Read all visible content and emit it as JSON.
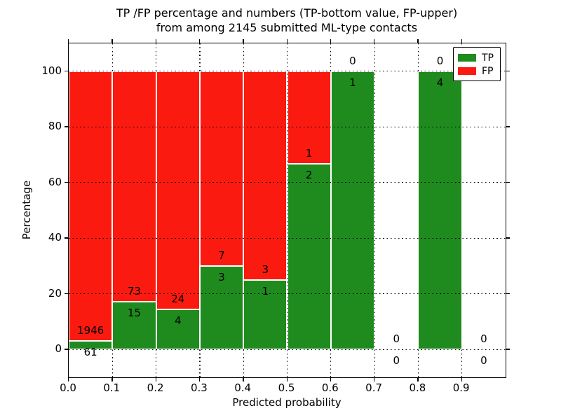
{
  "figure": {
    "title_line1": "TP /FP percentage and numbers (TP-bottom value, FP-upper)",
    "title_line2": "from among 2145 submitted ML-type contacts"
  },
  "axes": {
    "xlabel": "Predicted probability",
    "ylabel": "Percentage",
    "x_tick_labels": [
      "0.0",
      "0.1",
      "0.2",
      "0.3",
      "0.4",
      "0.5",
      "0.6",
      "0.7",
      "0.8",
      "0.9"
    ],
    "x_tick_values": [
      0.0,
      0.1,
      0.2,
      0.3,
      0.4,
      0.5,
      0.6,
      0.7,
      0.8,
      0.9
    ],
    "y_tick_labels": [
      "0",
      "20",
      "40",
      "60",
      "80",
      "100"
    ],
    "y_tick_values": [
      0,
      20,
      40,
      60,
      80,
      100
    ],
    "xlim": [
      0.0,
      1.0
    ],
    "ylim": [
      -10,
      110
    ],
    "grid": "dotted"
  },
  "legend": {
    "position": "upper right",
    "items": [
      {
        "label": "TP",
        "color": "#1f8b1f"
      },
      {
        "label": "FP",
        "color": "#fb1a10"
      }
    ]
  },
  "chart_data": {
    "type": "bar",
    "stacked": true,
    "normalized": "each bin scaled to 100%",
    "title": "TP /FP percentage and numbers (TP-bottom value, FP-upper) from among 2145 submitted ML-type contacts",
    "xlabel": "Predicted probability",
    "ylabel": "Percentage",
    "total_contacts_shown_in_title": 2145,
    "bin_width": 0.1,
    "bin_starts": [
      0.0,
      0.1,
      0.2,
      0.3,
      0.4,
      0.5,
      0.6,
      0.7,
      0.8,
      0.9
    ],
    "series": [
      {
        "name": "TP",
        "color": "#1f8b1f",
        "counts": [
          61,
          15,
          4,
          3,
          1,
          2,
          1,
          0,
          4,
          0
        ]
      },
      {
        "name": "FP",
        "color": "#fb1a10",
        "counts": [
          1946,
          73,
          24,
          7,
          3,
          1,
          0,
          0,
          0,
          0
        ]
      }
    ],
    "tp_percent_of_bin": [
      3.0,
      17.0,
      14.3,
      30.0,
      25.0,
      66.7,
      100.0,
      null,
      100.0,
      null
    ],
    "xlim": [
      0.0,
      1.0
    ],
    "ylim": [
      -10,
      110
    ],
    "legend_position": "upper right",
    "grid": true
  }
}
